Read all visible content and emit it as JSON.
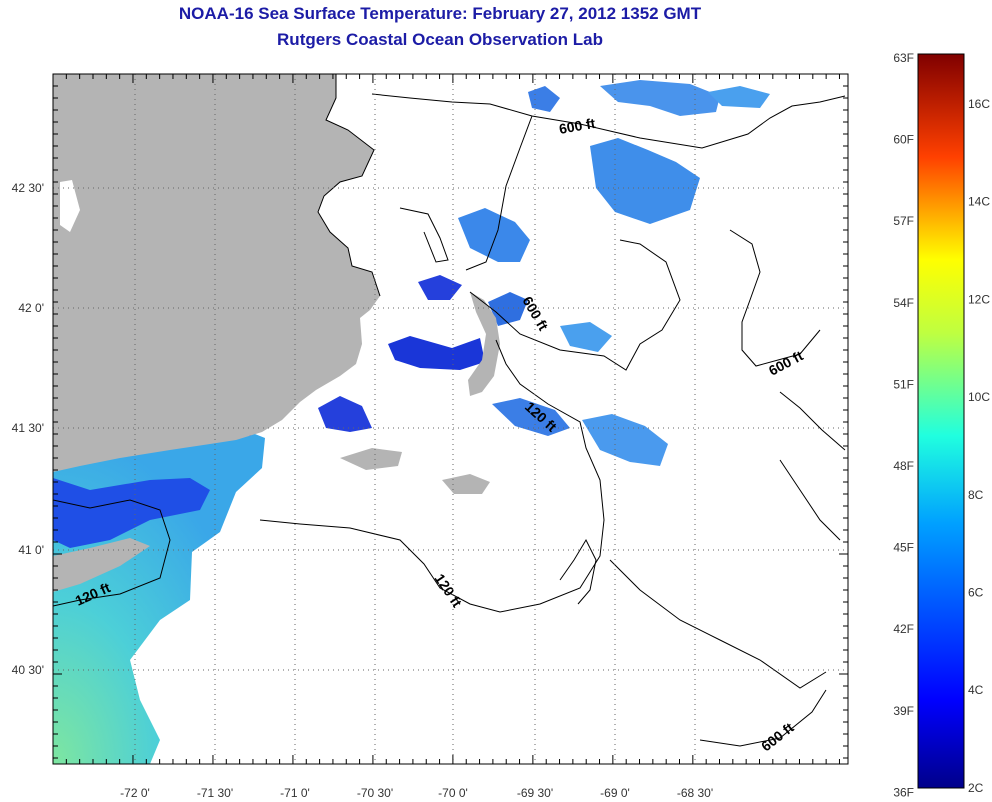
{
  "title": "NOAA-16 Sea Surface Temperature:  February 27, 2012 1352 GMT",
  "subtitle": "Rutgers Coastal Ocean Observation Lab",
  "axes": {
    "x_ticks": [
      "-72 0'",
      "-71 30'",
      "-71 0'",
      "-70 30'",
      "-70 0'",
      "-69 30'",
      "-69 0'",
      "-68 30'"
    ],
    "y_ticks": [
      "42 30'",
      "42 0'",
      "41 30'",
      "41 0'",
      "40 30'"
    ]
  },
  "colorbar": {
    "fahrenheit": [
      "63F",
      "60F",
      "57F",
      "54F",
      "51F",
      "48F",
      "45F",
      "42F",
      "39F",
      "36F"
    ],
    "celsius": [
      "16C",
      "14C",
      "12C",
      "10C",
      "8C",
      "6C",
      "4C",
      "2C"
    ]
  },
  "contours": [
    {
      "label": "600 ft"
    },
    {
      "label": "600 ft"
    },
    {
      "label": "600 ft"
    },
    {
      "label": "600 ft"
    },
    {
      "label": "120 ft"
    },
    {
      "label": "120 ft"
    },
    {
      "label": "120 ft"
    }
  ],
  "colors": {
    "land": "#b4b4b4",
    "title": "#1c1ca6",
    "sst_cold": "#1e3fe0",
    "sst_mid": "#3a9cf0",
    "sst_warm": "#5ad8c8"
  }
}
